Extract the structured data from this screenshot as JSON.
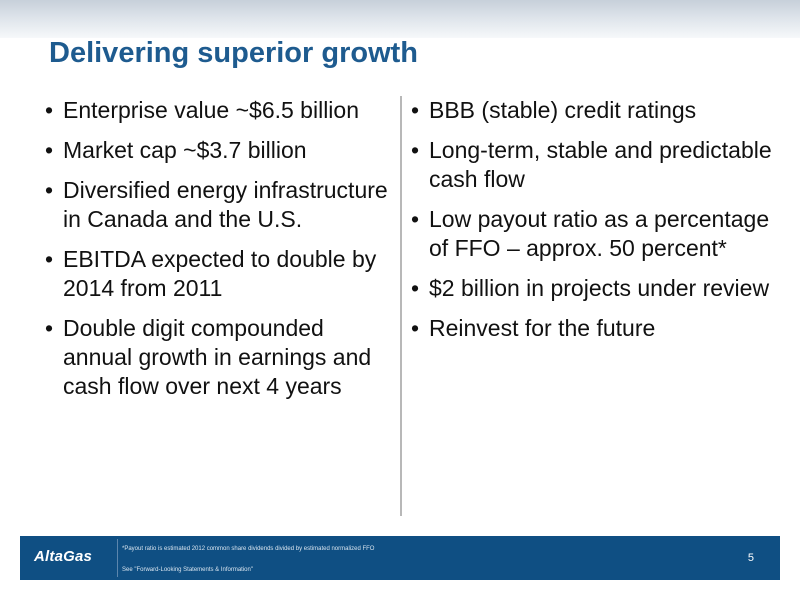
{
  "slide": {
    "title": "Delivering superior growth",
    "bullet_glyph": "•",
    "left_bullets": [
      "Enterprise value ~$6.5 billion",
      "Market cap ~$3.7 billion",
      "Diversified energy infrastructure in Canada and the U.S.",
      "EBITDA expected to double by 2014 from 2011",
      "Double digit compounded annual growth in earnings and cash flow over next 4 years"
    ],
    "right_bullets": [
      "BBB (stable) credit ratings",
      "Long-term, stable and predictable cash flow",
      "Low payout ratio as a percentage of FFO – approx. 50 percent*",
      "$2 billion in projects under review",
      "Reinvest for the future"
    ]
  },
  "footer": {
    "logo_text": "AltaGas",
    "footnote": "*Payout ratio is estimated 2012 common share dividends divided by estimated  normalized FFO",
    "disclaimer": "See \"Forward-Looking Statements & Information\"",
    "page_number": "5"
  },
  "colors": {
    "title": "#1e5b8f",
    "footer_bg": "#0f4f83",
    "text": "#111111"
  }
}
